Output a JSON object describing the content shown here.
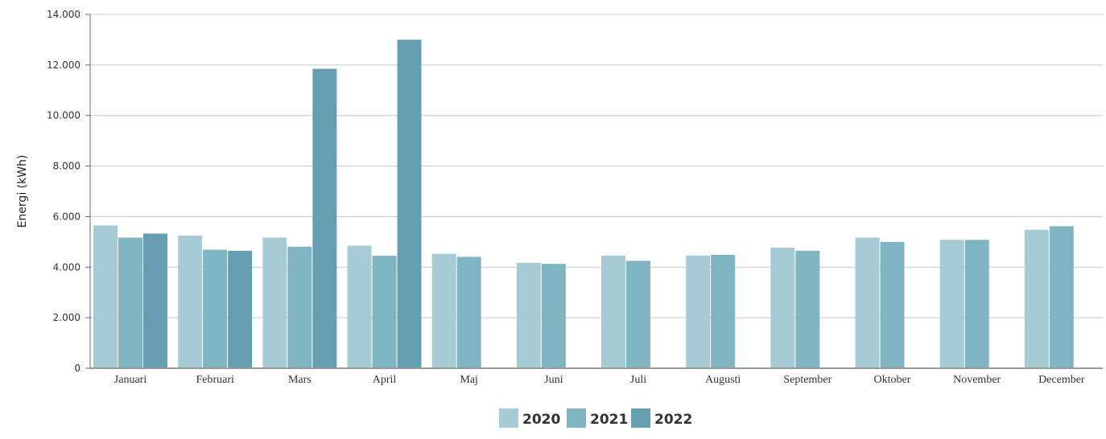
{
  "chart_data": {
    "type": "bar",
    "ylabel": "Energi (kWh)",
    "xlabel": "",
    "title": "",
    "ylim": [
      0,
      14000
    ],
    "y_ticks": [
      0,
      2000,
      4000,
      6000,
      8000,
      10000,
      12000,
      14000
    ],
    "y_tick_labels": [
      "0",
      "2.000",
      "4.000",
      "6.000",
      "8.000",
      "10.000",
      "12.000",
      "14.000"
    ],
    "grid": true,
    "legend_placement": "bottom-center",
    "categories": [
      "Januari",
      "Februari",
      "Mars",
      "April",
      "Maj",
      "Juni",
      "Juli",
      "Augusti",
      "September",
      "Oktober",
      "November",
      "December"
    ],
    "series": [
      {
        "name": "2020",
        "color": "#a7cbd6",
        "values": [
          5650,
          5250,
          5170,
          4850,
          4530,
          4170,
          4460,
          4460,
          4770,
          5170,
          5080,
          5480
        ]
      },
      {
        "name": "2021",
        "color": "#7fb4c3",
        "values": [
          5170,
          4690,
          4810,
          4450,
          4410,
          4130,
          4250,
          4490,
          4650,
          5000,
          5080,
          5620
        ]
      },
      {
        "name": "2022",
        "color": "#649eb0",
        "values": [
          5330,
          4650,
          11850,
          13000,
          null,
          null,
          null,
          null,
          null,
          null,
          null,
          null
        ]
      }
    ]
  }
}
